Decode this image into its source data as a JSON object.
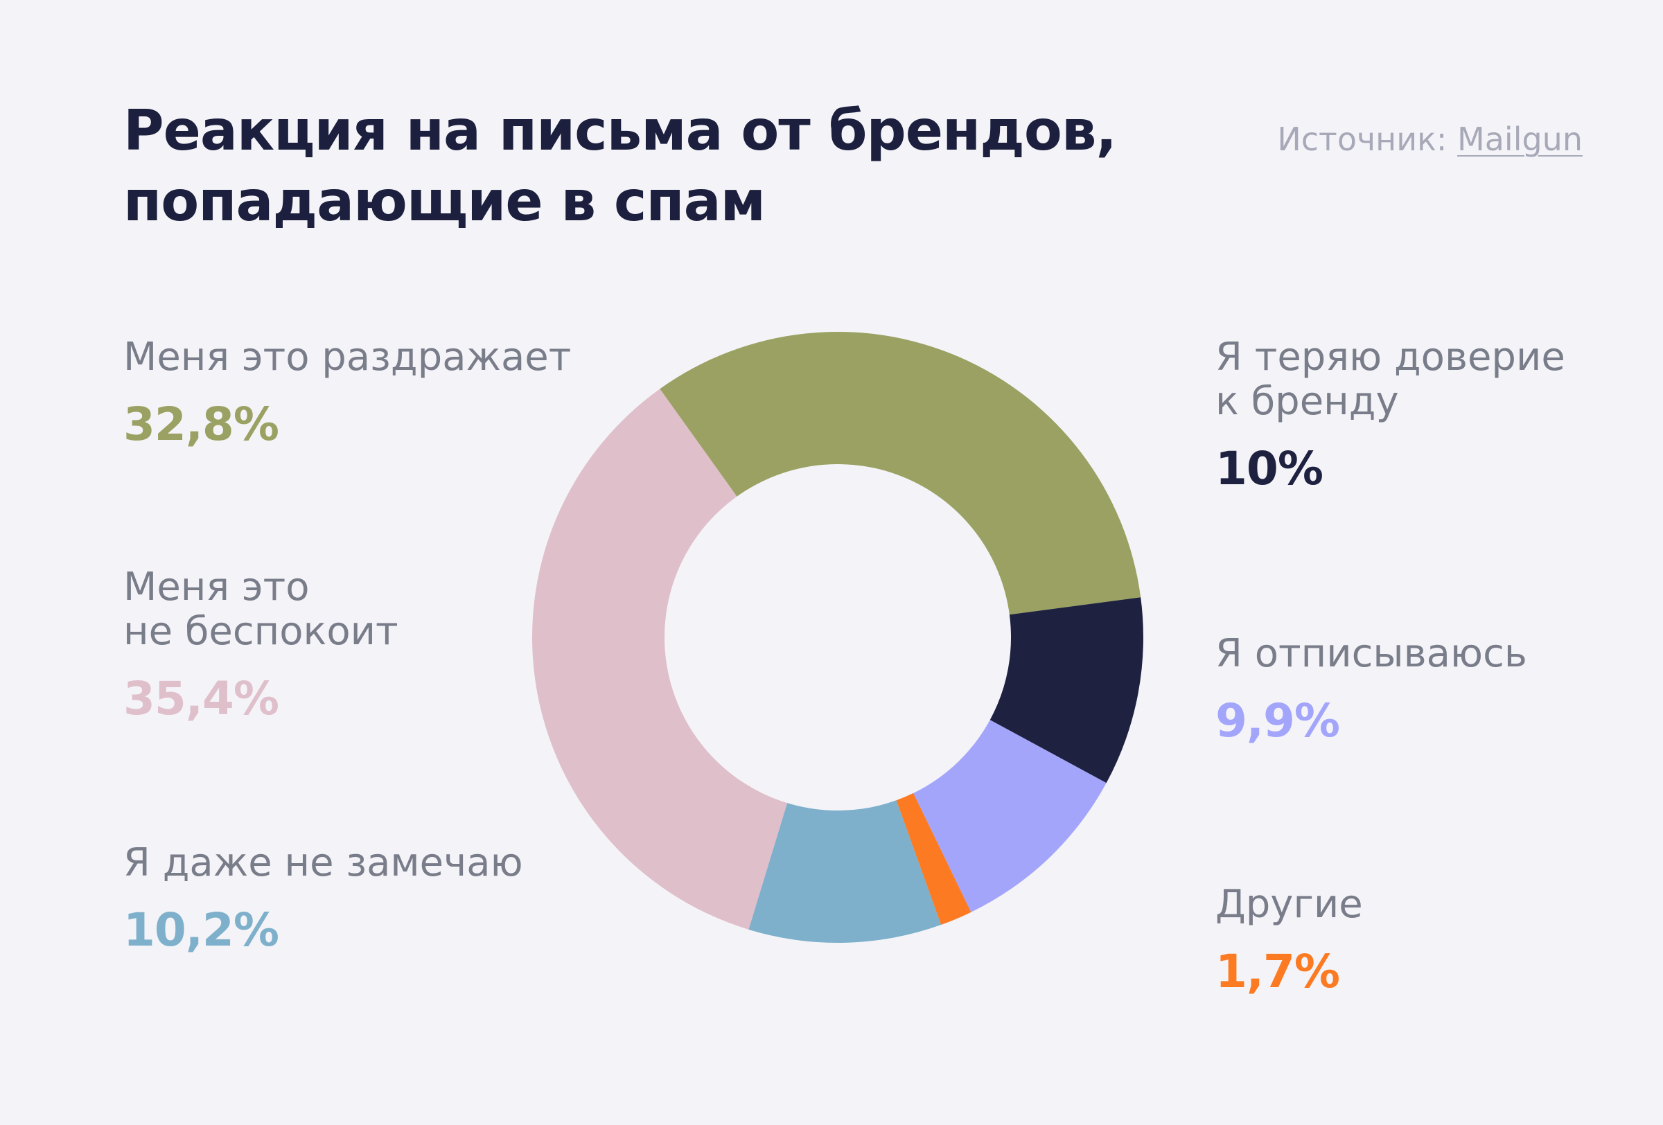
{
  "header": {
    "title": "Реакция на письма от брендов,\nпопадающие в спам",
    "source_prefix": "Источник: ",
    "source_link": "Mailgun"
  },
  "colors": {
    "background": "#f4f4f8",
    "title": "#1c1f3d",
    "label": "#797d8a",
    "source": "#a7a9b8"
  },
  "chart_data": {
    "type": "pie",
    "variant": "donut",
    "title": "Реакция на письма от брендов, попадающие в спам",
    "unit": "%",
    "slices": [
      {
        "label": "Меня это раздражает",
        "value": 32.8,
        "display": "32,8%",
        "color": "#9ba162"
      },
      {
        "label": "Я теряю доверие\nк бренду",
        "value": 10,
        "display": "10%",
        "color": "#1e2140"
      },
      {
        "label": "Я отписываюсь",
        "value": 9.9,
        "display": "9,9%",
        "color": "#a3a5fb"
      },
      {
        "label": "Другие",
        "value": 1.7,
        "display": "1,7%",
        "color": "#fb7a22"
      },
      {
        "label": "Я даже не замечаю",
        "value": 10.2,
        "display": "10,2%",
        "color": "#7eb0cb"
      },
      {
        "label": "Меня это\nне беспокоит",
        "value": 35.4,
        "display": "35,4%",
        "color": "#dfbfca"
      }
    ]
  }
}
